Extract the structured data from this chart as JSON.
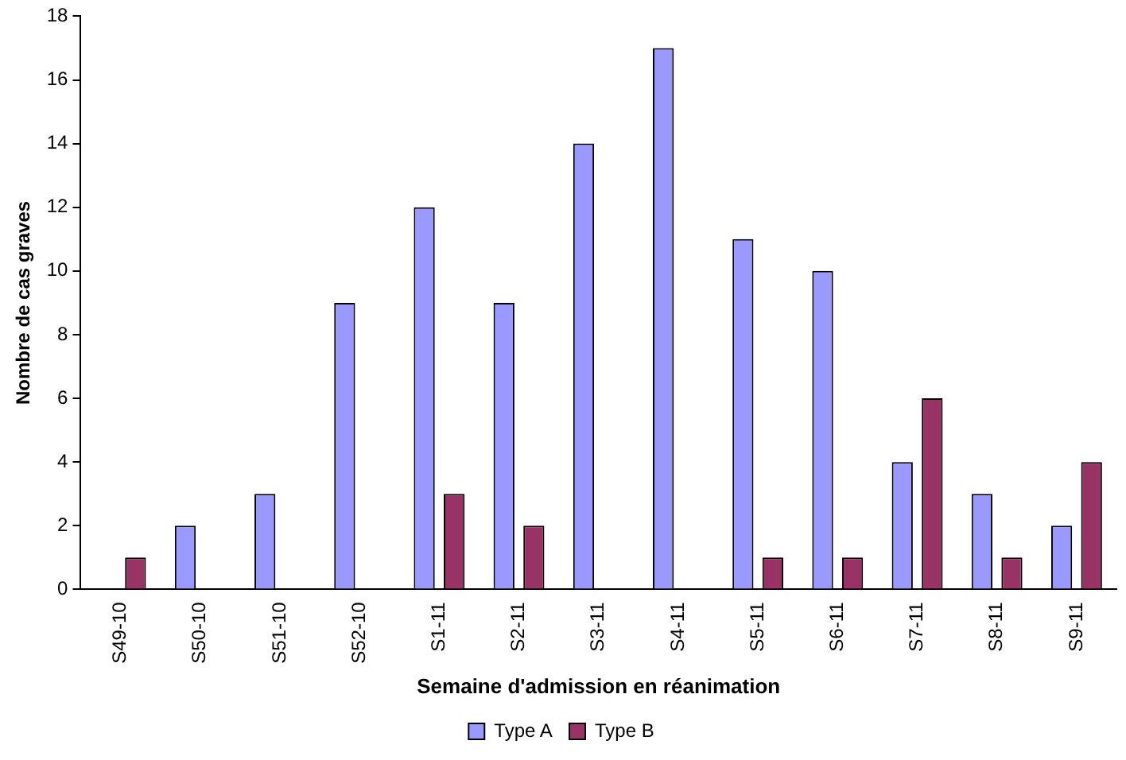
{
  "chart_data": {
    "type": "bar",
    "xlabel": "Semaine d'admission en réanimation",
    "ylabel": "Nombre de cas graves",
    "categories": [
      "S49-10",
      "S50-10",
      "S51-10",
      "S52-10",
      "S1-11",
      "S2-11",
      "S3-11",
      "S4-11",
      "S5-11",
      "S6-11",
      "S7-11",
      "S8-11",
      "S9-11"
    ],
    "series": [
      {
        "name": "Type A",
        "color": "#9999ff",
        "values": [
          0,
          2,
          3,
          9,
          12,
          9,
          14,
          17,
          11,
          10,
          4,
          3,
          2
        ]
      },
      {
        "name": "Type B",
        "color": "#993366",
        "values": [
          1,
          0,
          0,
          0,
          3,
          2,
          0,
          0,
          1,
          1,
          6,
          1,
          4
        ]
      }
    ],
    "ylim": [
      0,
      18
    ],
    "yticks": [
      0,
      2,
      4,
      6,
      8,
      10,
      12,
      14,
      16,
      18
    ],
    "grid": false,
    "legend": "bottom"
  }
}
